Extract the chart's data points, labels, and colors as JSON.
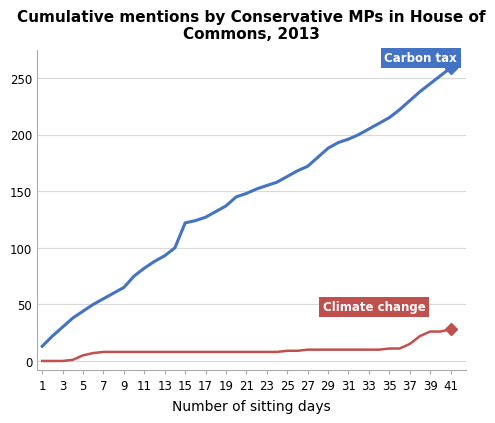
{
  "title": "Cumulative mentions by Conservative MPs in House of\nCommons, 2013",
  "xlabel": "Number of sitting days",
  "x_ticks": [
    1,
    3,
    5,
    7,
    9,
    11,
    13,
    15,
    17,
    19,
    21,
    23,
    25,
    27,
    29,
    31,
    33,
    35,
    37,
    39,
    41
  ],
  "carbon_tax_x": [
    1,
    2,
    3,
    4,
    5,
    6,
    7,
    8,
    9,
    10,
    11,
    12,
    13,
    14,
    15,
    16,
    17,
    18,
    19,
    20,
    21,
    22,
    23,
    24,
    25,
    26,
    27,
    28,
    29,
    30,
    31,
    32,
    33,
    34,
    35,
    36,
    37,
    38,
    39,
    40,
    41
  ],
  "carbon_tax_y": [
    13,
    22,
    30,
    38,
    44,
    50,
    55,
    60,
    65,
    75,
    82,
    88,
    93,
    100,
    122,
    124,
    127,
    132,
    137,
    145,
    148,
    152,
    155,
    158,
    163,
    168,
    172,
    180,
    188,
    193,
    196,
    200,
    205,
    210,
    215,
    222,
    230,
    238,
    245,
    252,
    259
  ],
  "climate_change_x": [
    1,
    2,
    3,
    4,
    5,
    6,
    7,
    8,
    9,
    10,
    11,
    12,
    13,
    14,
    15,
    16,
    17,
    18,
    19,
    20,
    21,
    22,
    23,
    24,
    25,
    26,
    27,
    28,
    29,
    30,
    31,
    32,
    33,
    34,
    35,
    36,
    37,
    38,
    39,
    40,
    41
  ],
  "climate_change_y": [
    0,
    0,
    0,
    1,
    5,
    7,
    8,
    8,
    8,
    8,
    8,
    8,
    8,
    8,
    8,
    8,
    8,
    8,
    8,
    8,
    8,
    8,
    8,
    8,
    9,
    9,
    10,
    10,
    10,
    10,
    10,
    10,
    10,
    10,
    11,
    11,
    15,
    22,
    26,
    26,
    28
  ],
  "carbon_tax_color": "#4472C4",
  "climate_change_color": "#C0504D",
  "carbon_tax_label": "Carbon tax",
  "climate_change_label": "Climate change",
  "carbon_tax_label_bg": "#4472C4",
  "climate_change_label_bg": "#C0504D",
  "ylim": [
    -8,
    275
  ],
  "xlim": [
    0.5,
    42.5
  ],
  "background_color": "#FFFFFF",
  "grid_color": "#D9D9D9",
  "marker_style": "D",
  "marker_size": 6,
  "yticks": [
    0,
    50,
    100,
    150,
    200,
    250
  ],
  "title_fontsize": 11,
  "tick_fontsize": 8.5,
  "xlabel_fontsize": 10
}
